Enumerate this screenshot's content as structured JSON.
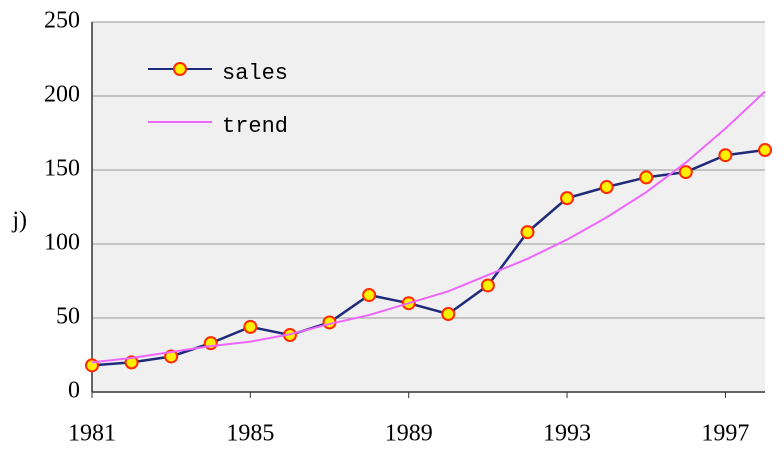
{
  "chart_data": {
    "type": "line",
    "ylabel": "j)",
    "x": [
      1981,
      1982,
      1983,
      1984,
      1985,
      1986,
      1987,
      1988,
      1989,
      1990,
      1991,
      1992,
      1993,
      1994,
      1995,
      1996,
      1997,
      1998
    ],
    "series": [
      {
        "name": "sales",
        "color": "#1f2a7a",
        "marker_fill": "#ffef00",
        "marker_edge": "#ff2a00",
        "values": [
          18,
          20,
          24,
          33,
          44,
          38.5,
          47,
          65.5,
          60,
          52.7,
          72,
          108,
          131,
          138.5,
          145,
          148.6,
          160,
          163.5
        ]
      },
      {
        "name": "trend",
        "color": "#ee66ff",
        "values": [
          20,
          23,
          27,
          31,
          34,
          39,
          46,
          52,
          60,
          68,
          79,
          90,
          103,
          118,
          135,
          155,
          178,
          203
        ]
      }
    ],
    "xlim": [
      1981,
      1998
    ],
    "xticks": [
      1981,
      1985,
      1989,
      1993,
      1997
    ],
    "ylim": [
      0,
      250
    ],
    "yticks": [
      0,
      50,
      100,
      150,
      200,
      250
    ],
    "grid": true,
    "legend": "upper left"
  }
}
